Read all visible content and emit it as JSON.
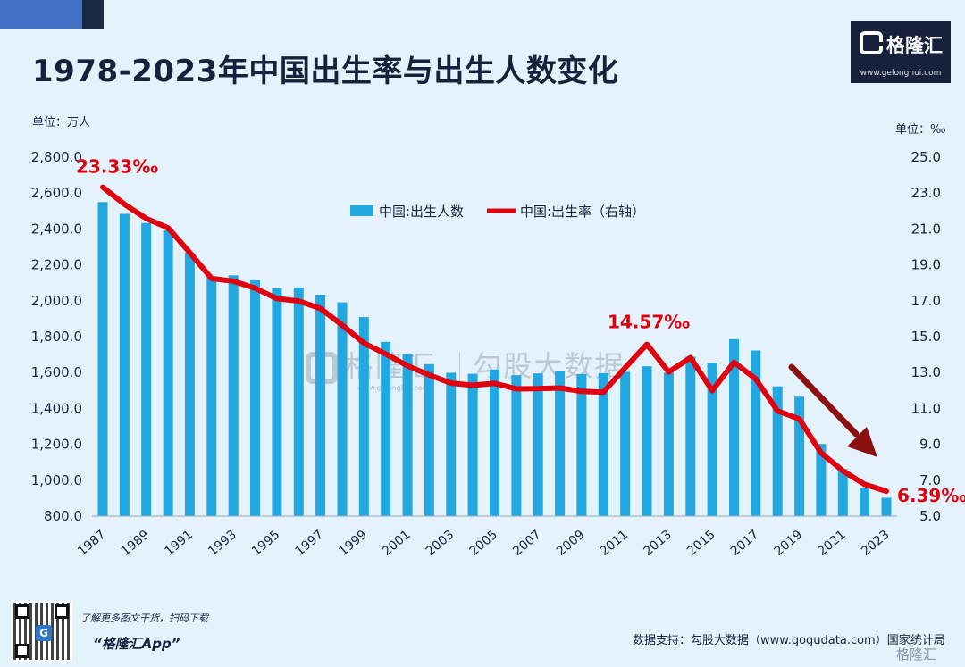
{
  "title": "1978-2023年中国出生率与出生人数变化",
  "logo": {
    "name": "格隆汇",
    "url": "www.gelonghui.com"
  },
  "units": {
    "left": "单位：万人",
    "right": "单位：‰"
  },
  "watermark": {
    "left": "格隆汇",
    "right": "勾股大数据",
    "url": "www.gelonghui.com"
  },
  "footer": {
    "promo_line1": "了解更多图文干货，扫码下载",
    "promo_line2": "“格隆汇App”",
    "source": "数据支持：勾股大数据（www.gogudata.com）国家统计局",
    "corner_logo": "格隆汇"
  },
  "colors": {
    "bar": "#22a7e0",
    "line": "#e0000e",
    "arrow": "#8b1010",
    "axis_text": "#1a2440"
  },
  "chart_data": {
    "type": "bar",
    "years": [
      1987,
      1988,
      1989,
      1990,
      1991,
      1992,
      1993,
      1994,
      1995,
      1996,
      1997,
      1998,
      1999,
      2000,
      2001,
      2002,
      2003,
      2004,
      2005,
      2006,
      2007,
      2008,
      2009,
      2010,
      2011,
      2012,
      2013,
      2014,
      2015,
      2016,
      2017,
      2018,
      2019,
      2020,
      2021,
      2022,
      2023
    ],
    "x_tick_labels": [
      "1987",
      "1989",
      "1991",
      "1993",
      "1995",
      "1997",
      "1999",
      "2001",
      "2003",
      "2005",
      "2007",
      "2009",
      "2011",
      "2013",
      "2015",
      "2017",
      "2019",
      "2021",
      "2023"
    ],
    "series": [
      {
        "name": "中国:出生人数",
        "type": "bar",
        "axis": "left",
        "values": [
          2550,
          2484,
          2433,
          2394,
          2268,
          2129,
          2142,
          2114,
          2070,
          2074,
          2034,
          1991,
          1909,
          1771,
          1702,
          1647,
          1599,
          1593,
          1617,
          1585,
          1595,
          1606,
          1592,
          1596,
          1604,
          1635,
          1599,
          1688,
          1655,
          1786,
          1723,
          1523,
          1465,
          1202,
          1062,
          956,
          902
        ]
      },
      {
        "name": "中国:出生率（右轴）",
        "type": "line",
        "axis": "right",
        "values": [
          23.33,
          22.37,
          21.58,
          21.06,
          19.68,
          18.24,
          18.09,
          17.7,
          17.12,
          16.98,
          16.57,
          15.64,
          14.64,
          14.03,
          13.38,
          12.86,
          12.41,
          12.29,
          12.4,
          12.09,
          12.1,
          12.14,
          11.95,
          11.9,
          13.27,
          14.57,
          13.03,
          13.83,
          11.99,
          13.57,
          12.64,
          10.86,
          10.41,
          8.52,
          7.52,
          6.77,
          6.39
        ]
      }
    ],
    "left_axis": {
      "ticks": [
        "2,800.0",
        "2,600.0",
        "2,400.0",
        "2,200.0",
        "2,000.0",
        "1,800.0",
        "1,600.0",
        "1,400.0",
        "1,200.0",
        "1,000.0",
        "800.0"
      ],
      "range": [
        800,
        2800
      ]
    },
    "right_axis": {
      "ticks": [
        "25.0",
        "23.0",
        "21.0",
        "19.0",
        "17.0",
        "15.0",
        "13.0",
        "11.0",
        "9.0",
        "7.0",
        "5.0"
      ],
      "range": [
        5,
        25
      ]
    },
    "annotations": [
      {
        "text": "23.33‰",
        "year": 1987
      },
      {
        "text": "14.57‰",
        "year": 2012
      },
      {
        "text": "6.39‰",
        "year": 2023
      }
    ],
    "legend_position": "top-center",
    "grid": false
  }
}
